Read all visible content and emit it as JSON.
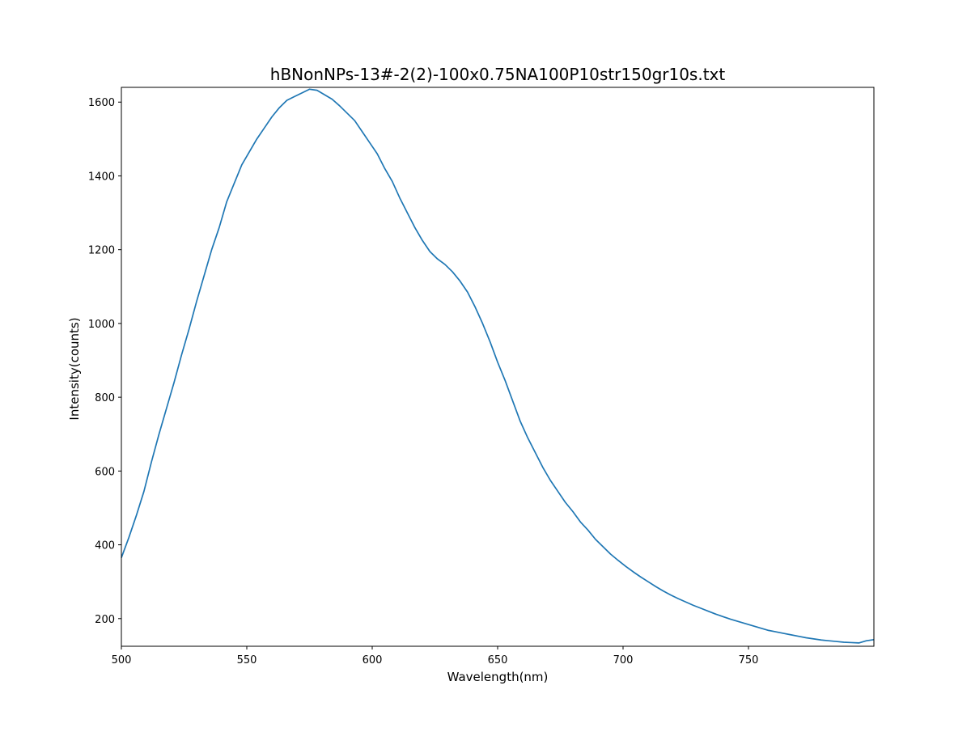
{
  "chart_data": {
    "type": "line",
    "title": "hBNonNPs-13#-2(2)-100x0.75NA100P10str150gr10s.txt",
    "xlabel": "Wavelength(nm)",
    "ylabel": "Intensity(counts)",
    "xlim": [
      500,
      800
    ],
    "ylim": [
      125,
      1640
    ],
    "grid": false,
    "legend": "none",
    "line_color": "#1f77b4",
    "x_ticks": [
      500,
      550,
      600,
      650,
      700,
      750
    ],
    "x_tick_labels": [
      "500",
      "550",
      "600",
      "650",
      "700",
      "750"
    ],
    "y_ticks": [
      200,
      400,
      600,
      800,
      1000,
      1200,
      1400,
      1600
    ],
    "y_tick_labels": [
      "200",
      "400",
      "600",
      "800",
      "1000",
      "1200",
      "1400",
      "1600"
    ],
    "series": [
      {
        "x": [
          500,
          503,
          506,
          509,
          512,
          515,
          518,
          521,
          524,
          527,
          530,
          533,
          536,
          539,
          542,
          545,
          548,
          551,
          554,
          557,
          560,
          563,
          566,
          569,
          572,
          575,
          578,
          581,
          584,
          587,
          590,
          593,
          596,
          599,
          602,
          605,
          608,
          611,
          614,
          617,
          620,
          623,
          626,
          629,
          632,
          635,
          638,
          641,
          644,
          647,
          650,
          653,
          656,
          659,
          662,
          665,
          668,
          671,
          674,
          677,
          680,
          683,
          686,
          689,
          692,
          695,
          698,
          701,
          704,
          707,
          710,
          713,
          716,
          719,
          722,
          725,
          728,
          731,
          734,
          737,
          740,
          743,
          746,
          749,
          752,
          755,
          758,
          761,
          764,
          767,
          770,
          773,
          776,
          779,
          782,
          785,
          788,
          791,
          794,
          797,
          800
        ],
        "y": [
          365,
          420,
          480,
          545,
          625,
          700,
          770,
          840,
          915,
          985,
          1060,
          1130,
          1200,
          1260,
          1330,
          1380,
          1430,
          1465,
          1500,
          1530,
          1560,
          1585,
          1605,
          1615,
          1625,
          1635,
          1632,
          1620,
          1608,
          1590,
          1570,
          1550,
          1520,
          1490,
          1460,
          1420,
          1385,
          1340,
          1300,
          1260,
          1225,
          1195,
          1175,
          1160,
          1140,
          1115,
          1085,
          1045,
          1000,
          950,
          895,
          845,
          790,
          735,
          690,
          650,
          610,
          575,
          545,
          515,
          490,
          462,
          440,
          415,
          395,
          375,
          358,
          342,
          327,
          313,
          300,
          287,
          275,
          264,
          254,
          245,
          236,
          228,
          220,
          212,
          205,
          198,
          192,
          186,
          180,
          174,
          168,
          164,
          160,
          156,
          152,
          148,
          145,
          142,
          140,
          138,
          136,
          135,
          134,
          140,
          143
        ]
      }
    ]
  }
}
